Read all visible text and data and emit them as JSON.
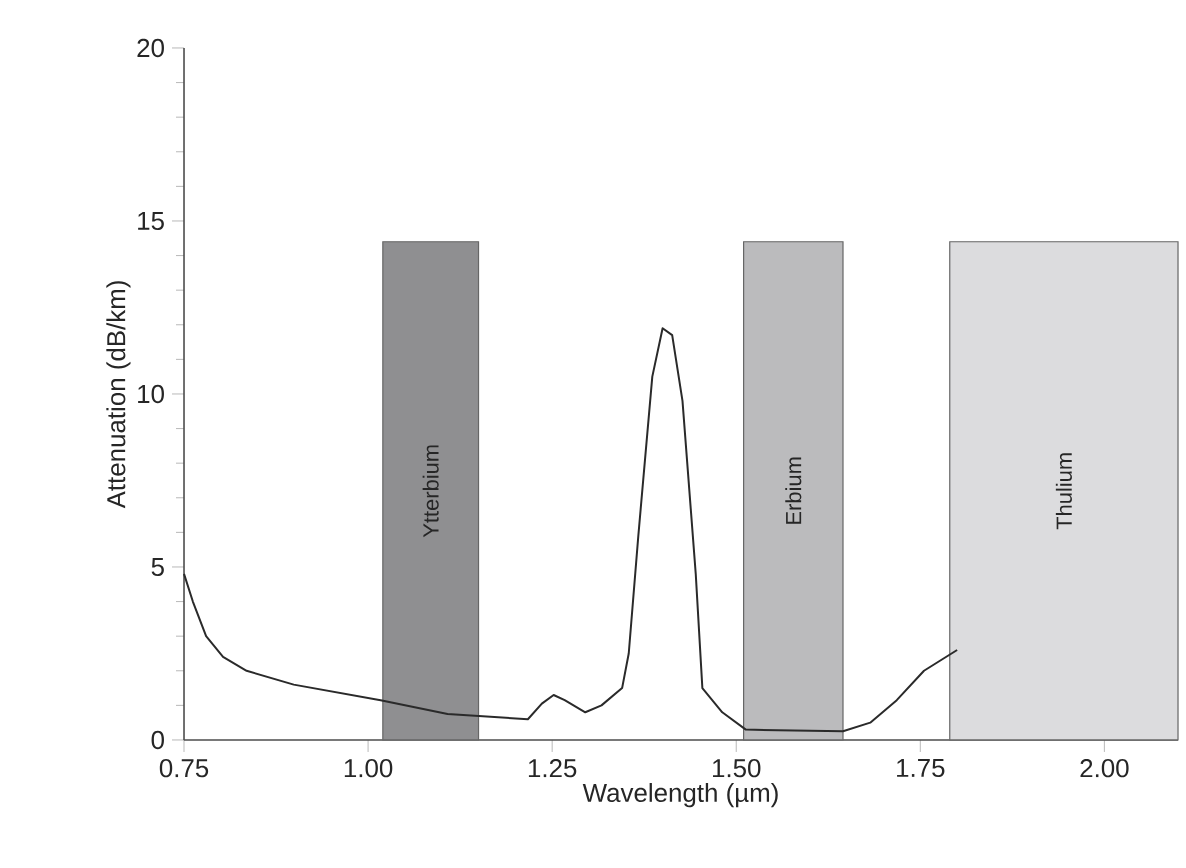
{
  "chart_data": {
    "type": "line",
    "xlabel": "Wavelength (µm)",
    "ylabel": "Attenuation (dB/km)",
    "xlim": [
      0.75,
      2.1
    ],
    "ylim": [
      0,
      20
    ],
    "xticks": [
      {
        "value": 0.75,
        "label": "0.75"
      },
      {
        "value": 1.0,
        "label": "1.00"
      },
      {
        "value": 1.25,
        "label": "1.25"
      },
      {
        "value": 1.5,
        "label": "1.50"
      },
      {
        "value": 1.75,
        "label": "1.75"
      },
      {
        "value": 2.0,
        "label": "2.00"
      }
    ],
    "yticks": [
      0,
      5,
      10,
      15,
      20
    ],
    "series": [
      {
        "color": "#2a2a2a",
        "x": [
          0.75,
          0.762,
          0.78,
          0.803,
          0.835,
          0.899,
          1.017,
          1.108,
          1.217,
          1.236,
          1.252,
          1.267,
          1.295,
          1.317,
          1.345,
          1.354,
          1.367,
          1.386,
          1.4,
          1.413,
          1.427,
          1.445,
          1.454,
          1.481,
          1.513,
          1.645,
          1.682,
          1.718,
          1.755,
          1.8
        ],
        "values": [
          4.8,
          4.0,
          3.0,
          2.4,
          2.0,
          1.6,
          1.15,
          0.75,
          0.6,
          1.05,
          1.3,
          1.15,
          0.8,
          1.0,
          1.5,
          2.5,
          5.9,
          10.5,
          11.9,
          11.7,
          9.8,
          4.8,
          1.5,
          0.8,
          0.3,
          0.25,
          0.5,
          1.15,
          2.0,
          2.6
        ]
      }
    ],
    "bands": [
      {
        "axis": "x",
        "from": 1.02,
        "to": 1.15,
        "label": "Ytterbium",
        "color": "#8f8f91"
      },
      {
        "axis": "x",
        "from": 1.51,
        "to": 1.645,
        "label": "Erbium",
        "color": "#bbbbbd"
      },
      {
        "axis": "x",
        "from": 1.79,
        "to": 2.1,
        "label": "Thulium",
        "color": "#dcdcde"
      }
    ]
  }
}
